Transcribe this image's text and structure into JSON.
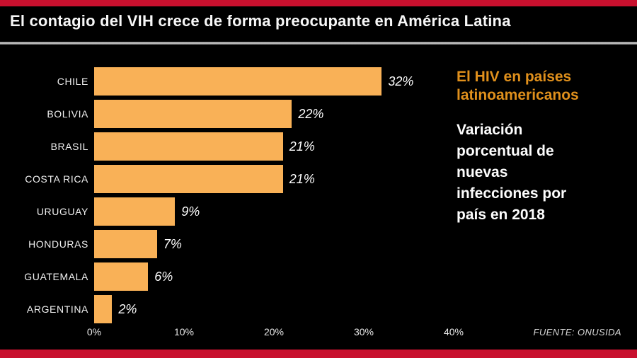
{
  "page": {
    "title": "El contagio del VIH crece de forma preocupante en América Latina",
    "background_color": "#000000",
    "accent_red": "#c8102e",
    "source": "FUENTE: ONUSIDA"
  },
  "side_panel": {
    "heading": "El HIV en países latinoamericanos",
    "heading_lines": [
      "El HIV en países",
      "latinoamericanos"
    ],
    "heading_color": "#e0901c",
    "description": "Variación porcentual de nuevas infecciones por país en 2018",
    "description_lines": [
      "Variación",
      "porcentual de",
      "nuevas",
      "infecciones por",
      "país en 2018"
    ]
  },
  "chart_data": {
    "type": "bar",
    "orientation": "horizontal",
    "title": "El HIV en países latinoamericanos",
    "subtitle": "Variación porcentual de nuevas infecciones por país en 2018",
    "categories": [
      "CHILE",
      "BOLIVIA",
      "BRASIL",
      "COSTA RICA",
      "URUGUAY",
      "HONDURAS",
      "GUATEMALA",
      "ARGENTINA"
    ],
    "values": [
      32,
      22,
      21,
      21,
      9,
      7,
      6,
      2
    ],
    "value_labels": [
      "32%",
      "22%",
      "21%",
      "21%",
      "9%",
      "7%",
      "6%",
      "2%"
    ],
    "xlabel": "",
    "ylabel": "",
    "xlim": [
      0,
      40
    ],
    "x_tick_labels": [
      "0%",
      "10%",
      "20%",
      "30%",
      "40%"
    ],
    "grid": false,
    "legend": false,
    "bar_color": "#f9b157",
    "value_label_position": "outside-right",
    "source": "FUENTE: ONUSIDA"
  }
}
